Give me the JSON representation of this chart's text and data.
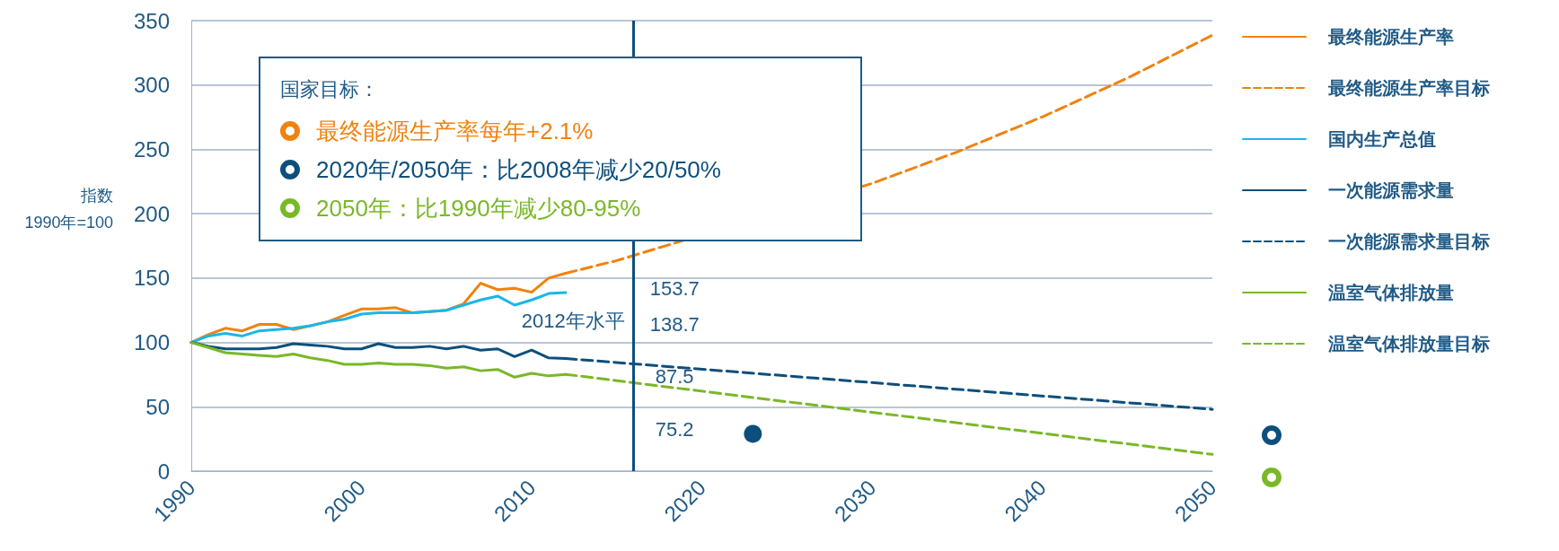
{
  "chart_data": {
    "type": "line",
    "ylabel": "指数\n1990年=100",
    "xlim": [
      1990,
      2050
    ],
    "xticks": [
      1990,
      2000,
      2010,
      2020,
      2030,
      2040,
      2050
    ],
    "ylim": [
      0,
      350
    ],
    "yticks": [
      0,
      50,
      100,
      150,
      200,
      250,
      300,
      350
    ],
    "grid": "y",
    "legend": "right",
    "series": [
      {
        "name": "最终能源生产率",
        "color": "#f0820f",
        "line_style": "solid",
        "x": [
          1990,
          1991,
          1992,
          1993,
          1994,
          1995,
          1996,
          1997,
          1998,
          1999,
          2000,
          2001,
          2002,
          2003,
          2004,
          2005,
          2006,
          2007,
          2008,
          2009,
          2010,
          2011,
          2012
        ],
        "values": [
          100,
          106,
          111,
          109,
          114,
          114,
          110,
          113,
          116,
          121,
          126,
          126,
          127,
          123,
          124,
          125,
          130,
          146,
          141,
          142,
          139,
          150,
          153.7
        ]
      },
      {
        "name": "最终能源生产率目标",
        "color": "#f0820f",
        "line_style": "dashed",
        "x": [
          2012,
          2015,
          2020,
          2025,
          2030,
          2035,
          2040,
          2045,
          2050
        ],
        "values": [
          153.7,
          163.6,
          null,
          null,
          223.5,
          248,
          275.2,
          305.3,
          338.7
        ]
      },
      {
        "name": "国内生产总值",
        "color": "#1ab6ea",
        "line_style": "solid",
        "x": [
          1990,
          1991,
          1992,
          1993,
          1994,
          1995,
          1996,
          1997,
          1998,
          1999,
          2000,
          2001,
          2002,
          2003,
          2004,
          2005,
          2006,
          2007,
          2008,
          2009,
          2010,
          2011,
          2012
        ],
        "values": [
          100,
          105,
          107,
          105,
          109,
          110,
          111,
          113,
          116,
          118,
          122,
          123,
          123,
          123,
          124,
          125,
          129,
          133,
          136,
          129,
          133,
          138,
          138.7
        ]
      },
      {
        "name": "一次能源需求量",
        "color": "#0d4f7c",
        "line_style": "solid",
        "x": [
          1990,
          1991,
          1992,
          1993,
          1994,
          1995,
          1996,
          1997,
          1998,
          1999,
          2000,
          2001,
          2002,
          2003,
          2004,
          2005,
          2006,
          2007,
          2008,
          2009,
          2010,
          2011,
          2012
        ],
        "values": [
          100,
          97,
          95,
          95,
          95,
          96,
          99,
          98,
          97,
          95,
          95,
          99,
          96,
          96,
          97,
          95,
          97,
          94,
          95,
          89,
          94,
          88,
          87.5
        ]
      },
      {
        "name": "一次能源需求量目标",
        "color": "#0d4f7c",
        "line_style": "dashed",
        "x": [
          2012,
          2050
        ],
        "values": [
          87.5,
          48
        ]
      },
      {
        "name": "温室气体排放量",
        "color": "#7ab827",
        "line_style": "solid",
        "x": [
          1990,
          1991,
          1992,
          1993,
          1994,
          1995,
          1996,
          1997,
          1998,
          1999,
          2000,
          2001,
          2002,
          2003,
          2004,
          2005,
          2006,
          2007,
          2008,
          2009,
          2010,
          2011,
          2012
        ],
        "values": [
          100,
          96,
          92,
          91,
          90,
          89,
          91,
          88,
          86,
          83,
          83,
          84,
          83,
          83,
          82,
          80,
          81,
          78,
          79,
          73,
          76,
          74,
          75.2
        ]
      },
      {
        "name": "温室气体排放量目标",
        "color": "#7ab827",
        "line_style": "dashed",
        "x": [
          2012,
          2050
        ],
        "values": [
          75.2,
          13
        ]
      },
      {
        "type": "scatter",
        "color": "#0d4f7c",
        "marker": "circle",
        "x": [
          2023
        ],
        "values": [
          29
        ]
      }
    ],
    "ref_lines": [
      {
        "axis": "x",
        "value": 2016,
        "label": "2012年水平",
        "color": "#0d4f7c"
      }
    ],
    "annotations": [
      "国家目标：",
      "最终能源生产率每年+2.1%",
      "2020年/2050年：比2008年减少20/50%",
      "2050年：比1990年减少80-95%",
      "153.7",
      "138.7",
      "87.5",
      "75.2"
    ]
  }
}
